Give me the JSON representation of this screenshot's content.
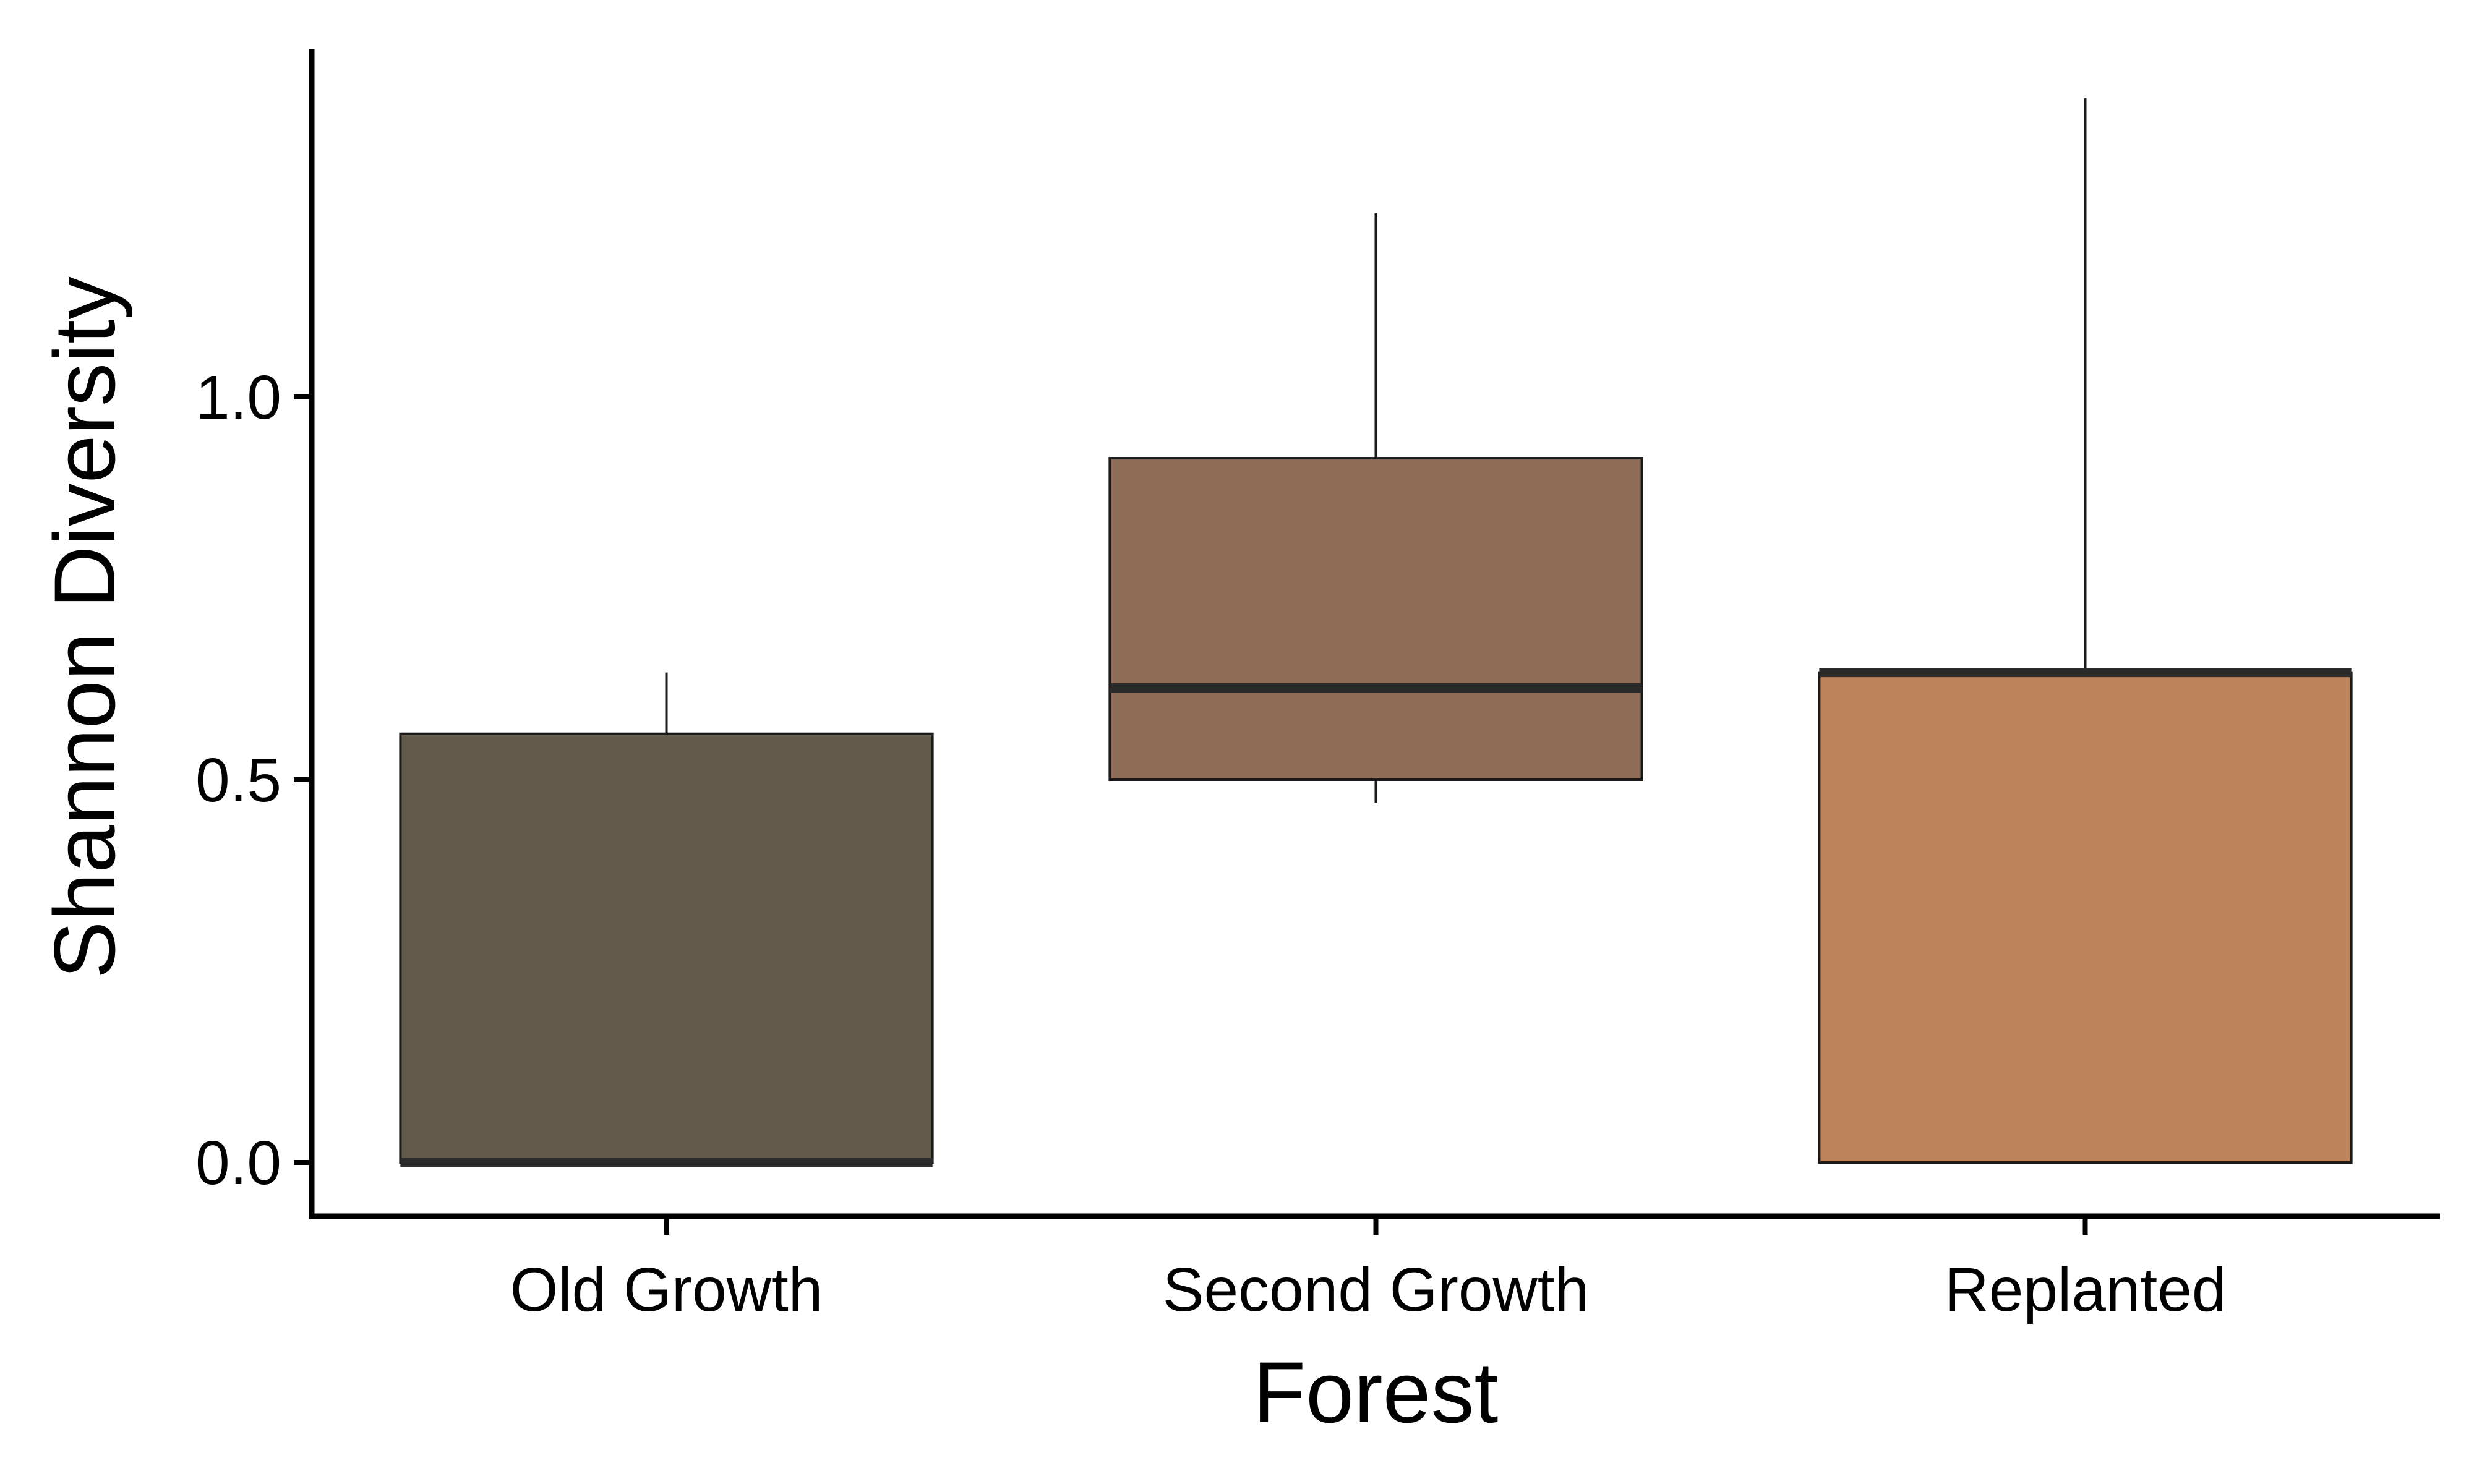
{
  "chart_data": {
    "type": "boxplot",
    "title": "",
    "xlabel": "Forest",
    "ylabel": "Shannon Diversity",
    "ylim": [
      -0.07,
      1.46
    ],
    "yticks": [
      0.0,
      0.5,
      1.0
    ],
    "ytick_labels": [
      "0.0",
      "0.5",
      "1.0"
    ],
    "grid": false,
    "categories": [
      "Old Growth",
      "Second Growth",
      "Replanted"
    ],
    "boxes": [
      {
        "category": "Old Growth",
        "min": 0.0,
        "q1": 0.0,
        "median": 0.0,
        "q3": 0.56,
        "max": 0.64,
        "color": "#635a4b"
      },
      {
        "category": "Second Growth",
        "min": 0.47,
        "q1": 0.5,
        "median": 0.62,
        "q3": 0.92,
        "max": 1.24,
        "color": "#8e6c58"
      },
      {
        "category": "Replanted",
        "min": 0.0,
        "q1": 0.0,
        "median": 0.64,
        "q3": 0.64,
        "max": 1.39,
        "color": "#bc835b"
      }
    ]
  }
}
